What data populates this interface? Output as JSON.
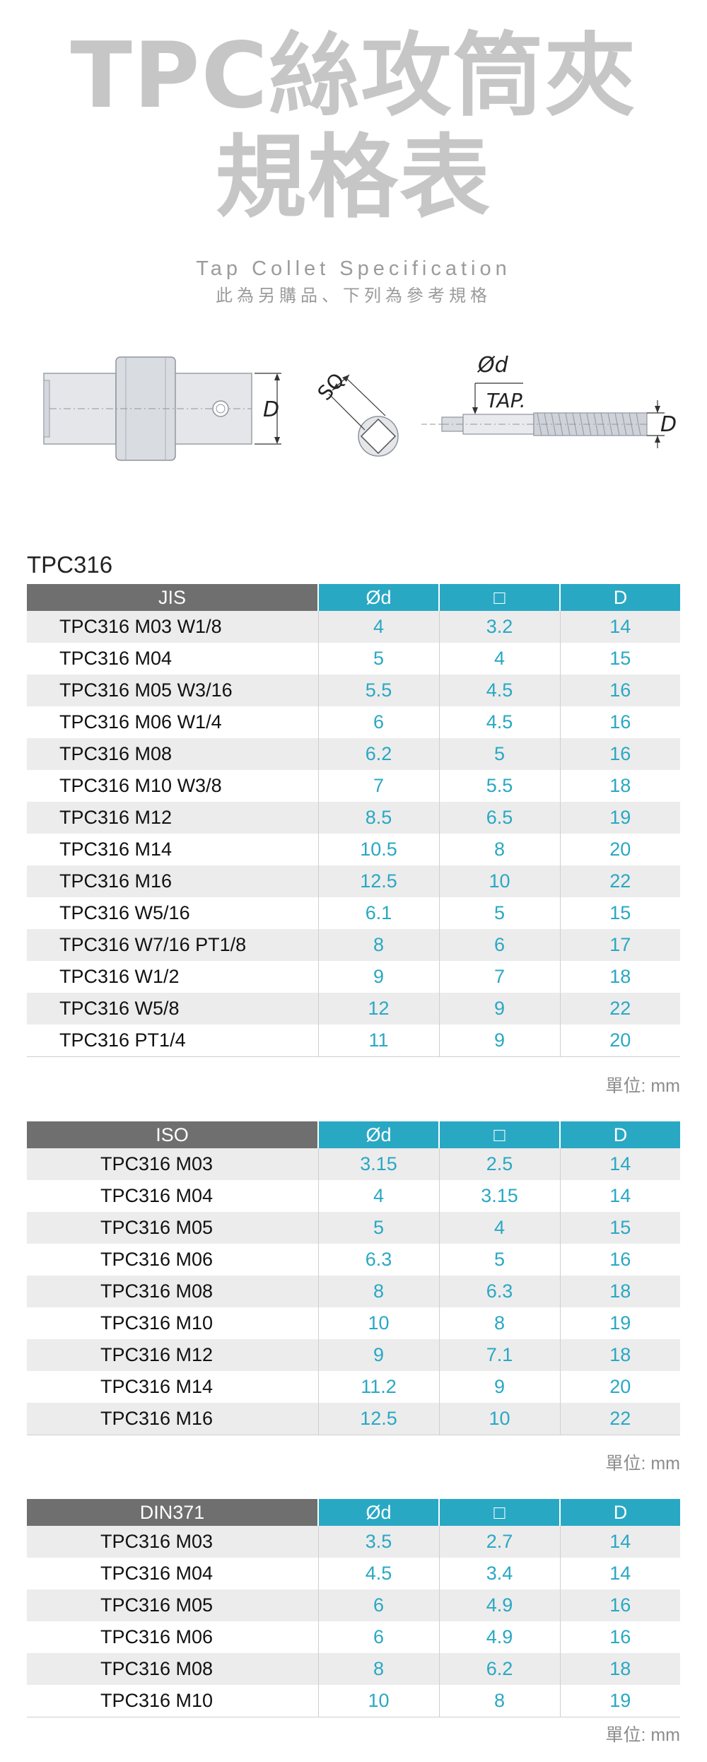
{
  "header": {
    "title_line1": "TPC絲攻筒夾",
    "title_line2": "規格表",
    "subtitle_en": "Tap Collet Specification",
    "subtitle_zh": "此為另購品、下列為參考規格"
  },
  "diagram": {
    "label_d": "D",
    "label_sq": "SQ",
    "label_phi_d": "Ød",
    "label_tap": "TAP.",
    "label_d2": "D"
  },
  "section_title": "TPC316",
  "unit_label": "單位: mm",
  "columns": {
    "phi_d": "Ød",
    "square": "□",
    "d": "D"
  },
  "tables": {
    "jis": {
      "header": "JIS",
      "rows": [
        {
          "name": "TPC316 M03 W1/8",
          "od": "4",
          "sq": "3.2",
          "d": "14"
        },
        {
          "name": "TPC316 M04",
          "od": "5",
          "sq": "4",
          "d": "15"
        },
        {
          "name": "TPC316 M05 W3/16",
          "od": "5.5",
          "sq": "4.5",
          "d": "16"
        },
        {
          "name": "TPC316 M06 W1/4",
          "od": "6",
          "sq": "4.5",
          "d": "16"
        },
        {
          "name": "TPC316 M08",
          "od": "6.2",
          "sq": "5",
          "d": "16"
        },
        {
          "name": "TPC316 M10 W3/8",
          "od": "7",
          "sq": "5.5",
          "d": "18"
        },
        {
          "name": "TPC316 M12",
          "od": "8.5",
          "sq": "6.5",
          "d": "19"
        },
        {
          "name": "TPC316 M14",
          "od": "10.5",
          "sq": "8",
          "d": "20"
        },
        {
          "name": "TPC316 M16",
          "od": "12.5",
          "sq": "10",
          "d": "22"
        },
        {
          "name": "TPC316 W5/16",
          "od": "6.1",
          "sq": "5",
          "d": "15"
        },
        {
          "name": "TPC316 W7/16 PT1/8",
          "od": "8",
          "sq": "6",
          "d": "17"
        },
        {
          "name": "TPC316 W1/2",
          "od": "9",
          "sq": "7",
          "d": "18"
        },
        {
          "name": "TPC316 W5/8",
          "od": "12",
          "sq": "9",
          "d": "22"
        },
        {
          "name": "TPC316 PT1/4",
          "od": "11",
          "sq": "9",
          "d": "20"
        }
      ]
    },
    "iso": {
      "header": "ISO",
      "rows": [
        {
          "name": "TPC316 M03",
          "od": "3.15",
          "sq": "2.5",
          "d": "14"
        },
        {
          "name": "TPC316 M04",
          "od": "4",
          "sq": "3.15",
          "d": "14"
        },
        {
          "name": "TPC316 M05",
          "od": "5",
          "sq": "4",
          "d": "15"
        },
        {
          "name": "TPC316 M06",
          "od": "6.3",
          "sq": "5",
          "d": "16"
        },
        {
          "name": "TPC316 M08",
          "od": "8",
          "sq": "6.3",
          "d": "18"
        },
        {
          "name": "TPC316 M10",
          "od": "10",
          "sq": "8",
          "d": "19"
        },
        {
          "name": "TPC316 M12",
          "od": "9",
          "sq": "7.1",
          "d": "18"
        },
        {
          "name": "TPC316 M14",
          "od": "11.2",
          "sq": "9",
          "d": "20"
        },
        {
          "name": "TPC316 M16",
          "od": "12.5",
          "sq": "10",
          "d": "22"
        }
      ]
    },
    "din": {
      "header": "DIN371",
      "rows": [
        {
          "name": "TPC316 M03",
          "od": "3.5",
          "sq": "2.7",
          "d": "14"
        },
        {
          "name": "TPC316 M04",
          "od": "4.5",
          "sq": "3.4",
          "d": "14"
        },
        {
          "name": "TPC316 M05",
          "od": "6",
          "sq": "4.9",
          "d": "16"
        },
        {
          "name": "TPC316 M06",
          "od": "6",
          "sq": "4.9",
          "d": "16"
        },
        {
          "name": "TPC316 M08",
          "od": "8",
          "sq": "6.2",
          "d": "18"
        },
        {
          "name": "TPC316 M10",
          "od": "10",
          "sq": "8",
          "d": "19"
        }
      ]
    }
  }
}
